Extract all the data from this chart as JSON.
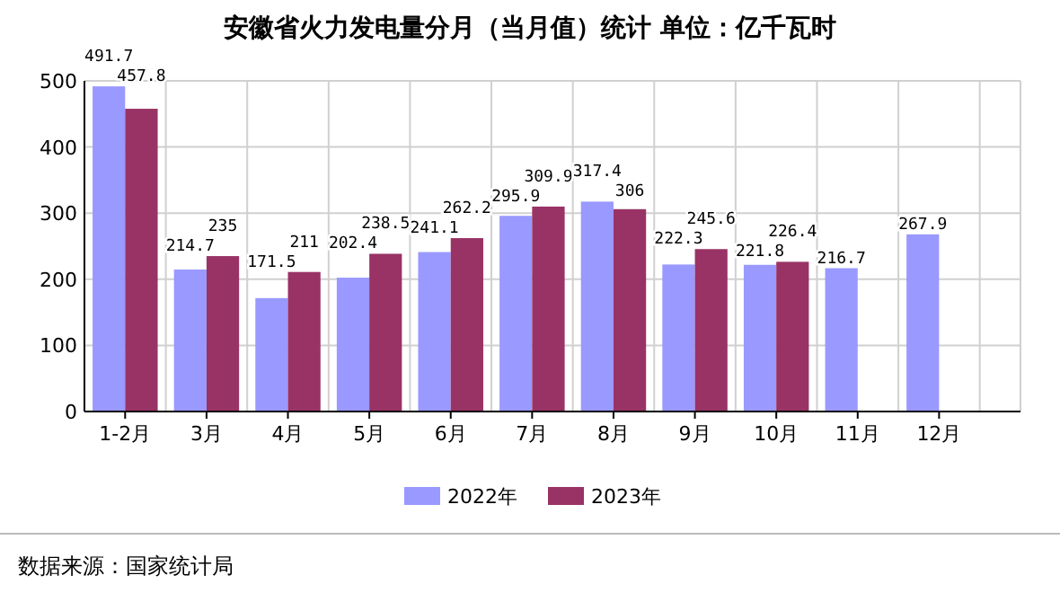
{
  "chart_data": {
    "type": "bar",
    "title": "安徽省火力发电量分月（当月值）统计 单位：亿千瓦时",
    "categories": [
      "1-2月",
      "3月",
      "4月",
      "5月",
      "6月",
      "7月",
      "8月",
      "9月",
      "10月",
      "11月",
      "12月"
    ],
    "series": [
      {
        "name": "2022年",
        "color": "#9999ff",
        "values": [
          491.7,
          214.7,
          171.5,
          202.4,
          241.1,
          295.9,
          317.4,
          222.3,
          221.8,
          216.7,
          267.9
        ]
      },
      {
        "name": "2023年",
        "color": "#993366",
        "values": [
          457.8,
          235,
          211,
          238.5,
          262.2,
          309.9,
          306,
          245.6,
          226.4,
          null,
          null
        ]
      }
    ],
    "ylim": [
      0,
      500
    ],
    "yticks": [
      0,
      100,
      200,
      300,
      400,
      500
    ],
    "grid": true,
    "legend": "bottom",
    "data_labels": true,
    "annotations": [
      "数据来源：国家统计局"
    ]
  }
}
